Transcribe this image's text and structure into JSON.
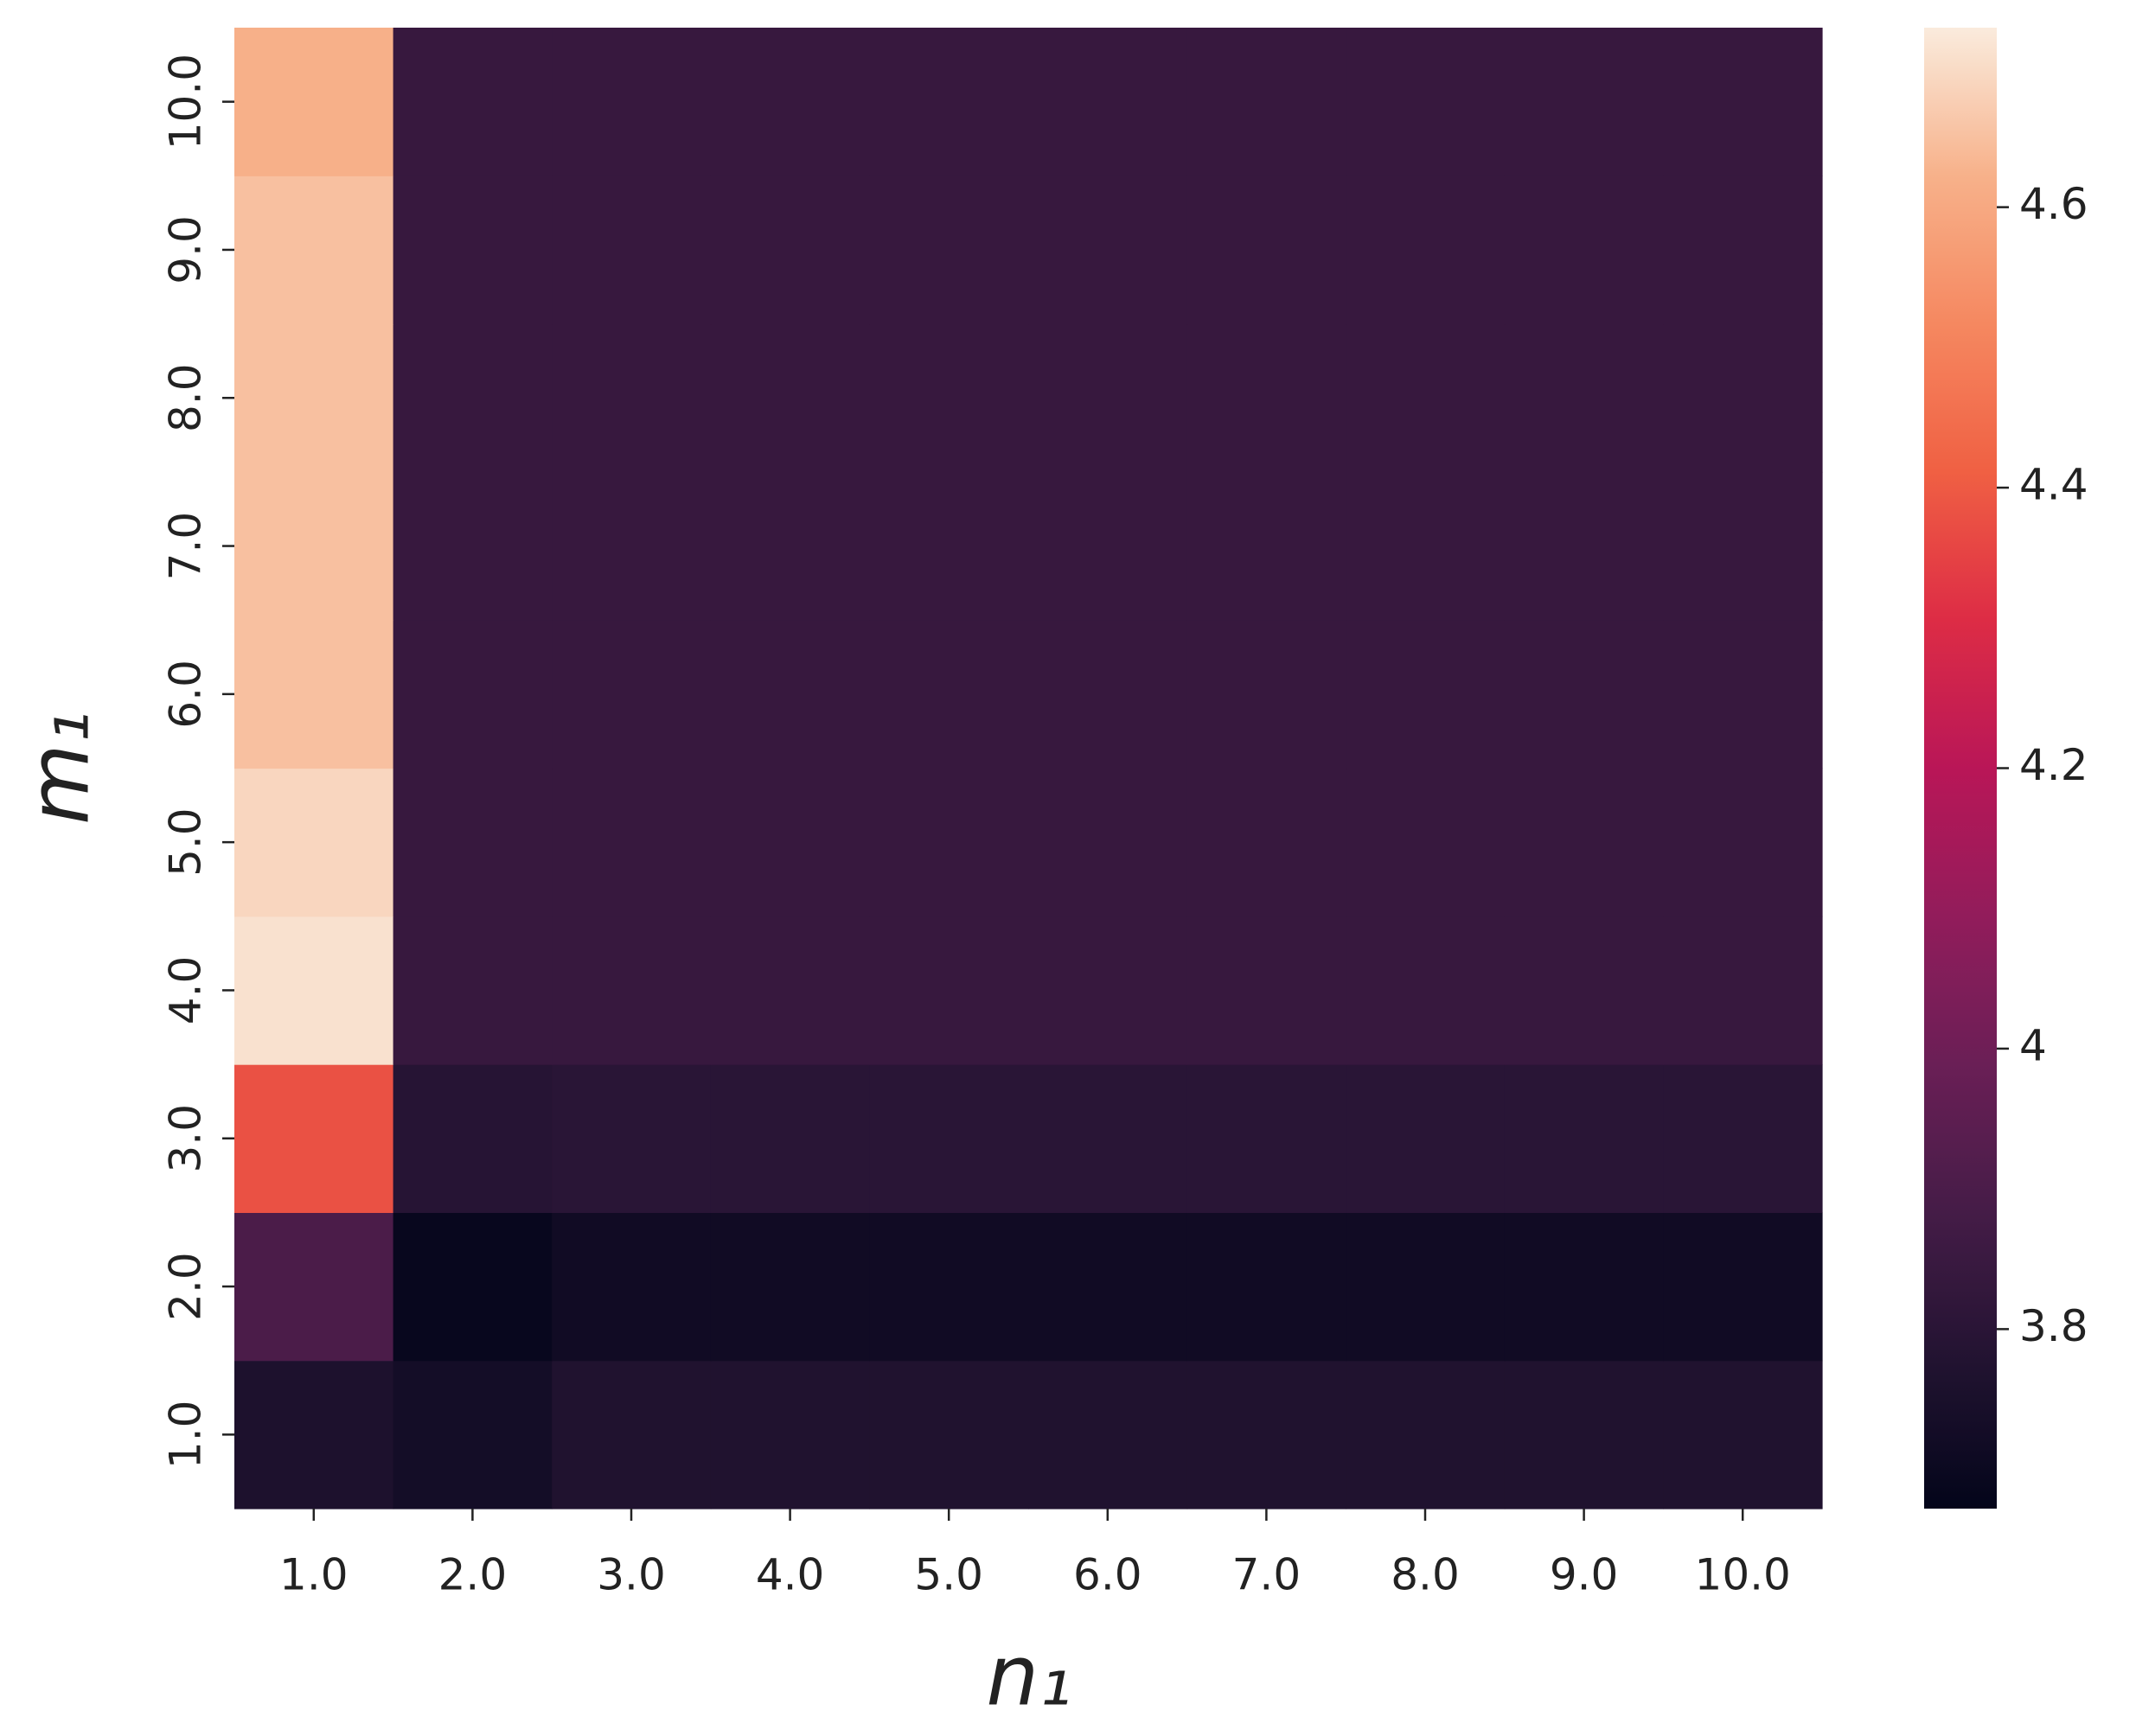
{
  "chart_data": {
    "type": "heatmap",
    "x_label": "n₁",
    "y_label": "m₁",
    "x_categories": [
      "1.0",
      "2.0",
      "3.0",
      "4.0",
      "5.0",
      "6.0",
      "7.0",
      "8.0",
      "9.0",
      "10.0"
    ],
    "y_categories": [
      "1.0",
      "2.0",
      "3.0",
      "4.0",
      "5.0",
      "6.0",
      "7.0",
      "8.0",
      "9.0",
      "10.0"
    ],
    "values": [
      [
        3.76,
        3.73,
        3.77,
        3.77,
        3.77,
        3.77,
        3.77,
        3.77,
        3.77,
        3.77
      ],
      [
        3.9,
        3.69,
        3.72,
        3.72,
        3.72,
        3.72,
        3.72,
        3.72,
        3.72,
        3.72
      ],
      [
        4.38,
        3.79,
        3.8,
        3.8,
        3.8,
        3.8,
        3.8,
        3.8,
        3.8,
        3.8
      ],
      [
        4.71,
        3.84,
        3.84,
        3.84,
        3.84,
        3.84,
        3.84,
        3.84,
        3.84,
        3.84
      ],
      [
        4.69,
        3.84,
        3.84,
        3.84,
        3.84,
        3.84,
        3.84,
        3.84,
        3.84,
        3.84
      ],
      [
        4.65,
        3.84,
        3.84,
        3.84,
        3.84,
        3.84,
        3.84,
        3.84,
        3.84,
        3.84
      ],
      [
        4.65,
        3.84,
        3.84,
        3.84,
        3.84,
        3.84,
        3.84,
        3.84,
        3.84,
        3.84
      ],
      [
        4.65,
        3.84,
        3.84,
        3.84,
        3.84,
        3.84,
        3.84,
        3.84,
        3.84,
        3.84
      ],
      [
        4.65,
        3.84,
        3.84,
        3.84,
        3.84,
        3.84,
        3.84,
        3.84,
        3.84,
        3.84
      ],
      [
        4.62,
        3.84,
        3.84,
        3.84,
        3.84,
        3.84,
        3.84,
        3.84,
        3.84,
        3.84
      ]
    ],
    "colormap": "rocket",
    "clim": [
      3.672,
      4.728
    ],
    "colorbar_ticks": [
      3.8,
      4.0,
      4.2,
      4.4,
      4.6
    ]
  }
}
